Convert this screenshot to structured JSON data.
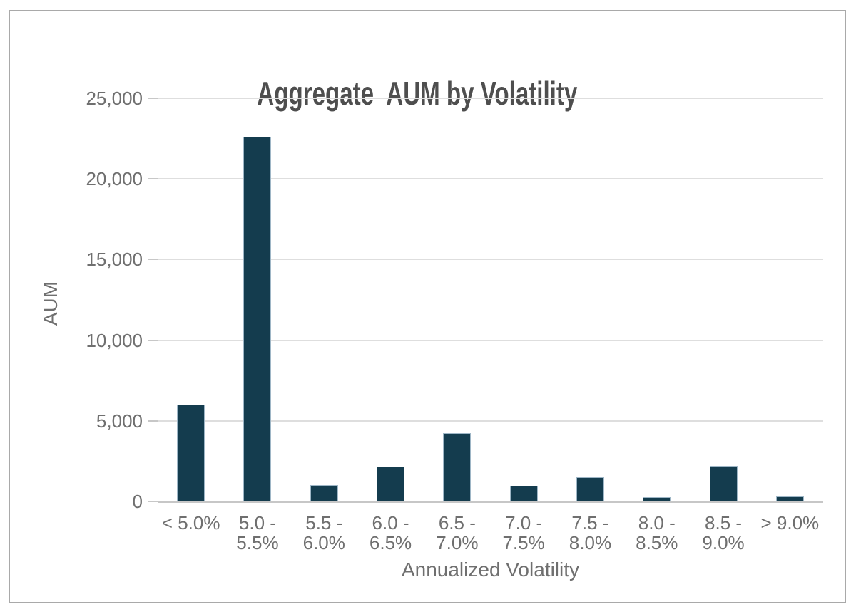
{
  "chart_data": {
    "type": "bar",
    "title": "Aggregate  AUM by Volatility",
    "xlabel": "Annualized Volatility",
    "ylabel": "AUM",
    "categories": [
      "< 5.0%",
      "5.0 -\n5.5%",
      "5.5 -\n6.0%",
      "6.0 -\n6.5%",
      "6.5 -\n7.0%",
      "7.0 -\n7.5%",
      "7.5 -\n8.0%",
      "8.0 -\n8.5%",
      "8.5 -\n9.0%",
      "> 9.0%"
    ],
    "values": [
      6000,
      22600,
      1000,
      2150,
      4250,
      950,
      1500,
      250,
      2200,
      300
    ],
    "ylim": [
      0,
      25000
    ],
    "yticks": [
      0,
      5000,
      10000,
      15000,
      20000,
      25000
    ],
    "ytick_labels": [
      "0",
      "5,000",
      "10,000",
      "15,000",
      "20,000",
      "25,000"
    ],
    "grid": true,
    "legend": "none",
    "bar_color": "#143c4e",
    "bar_border_color": "#9eb6c6",
    "frame_border_color": "#a9a9a9",
    "gridline_color": "#dedede",
    "axis_line_color": "#c7c7c7",
    "title_color": "#4e4e4e",
    "label_color": "#6f6f6f"
  }
}
